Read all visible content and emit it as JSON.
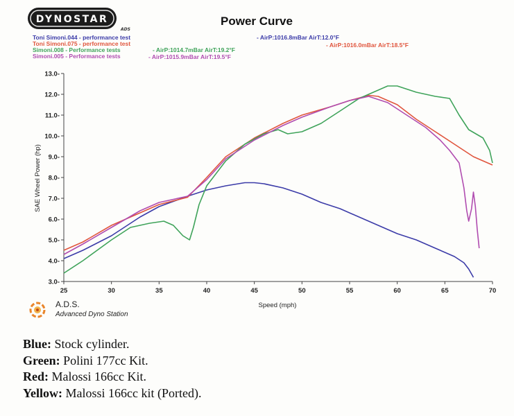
{
  "brand": {
    "logo_text": "DYNOSTAR",
    "sub_text": "ADS"
  },
  "ads": {
    "title": "A.D.S.",
    "subtitle": "Advanced Dyno Station"
  },
  "legend": [
    {
      "name": "Toni Simoni.044 - performance test",
      "air": "- AirP:1016.8mBar AirT:12.0°F",
      "color": "#3b3ba8"
    },
    {
      "name": "Toni Simoni.075 - performance test",
      "air": "- AirP:1016.0mBar AirT:18.5°F",
      "color": "#e0553d"
    },
    {
      "name": "Simoni.008 - Performance tests",
      "air": "- AirP:1014.7mBar AirT:19.2°F",
      "color": "#3fa35a"
    },
    {
      "name": "Simoni.005 - Performance tests",
      "air": "- AirP:1015.9mBar AirT:19.5°F",
      "color": "#b04cb0"
    }
  ],
  "captions": [
    {
      "label": "Blue:",
      "text": " Stock cylinder."
    },
    {
      "label": "Green:",
      "text": " Polini 177cc Kit."
    },
    {
      "label": "Red:",
      "text": " Malossi 166cc Kit."
    },
    {
      "label": "Yellow:",
      "text": " Malossi 166cc kit (Ported)."
    }
  ],
  "chart_data": {
    "type": "line",
    "title": "Power Curve",
    "xlabel": "Speed (mph)",
    "ylabel": "SAE Wheel Power (hp)",
    "xlim": [
      25,
      70
    ],
    "ylim": [
      3,
      13
    ],
    "xticks": [
      25,
      30,
      35,
      40,
      45,
      50,
      55,
      60,
      65,
      70
    ],
    "yticks": [
      3.0,
      4.0,
      5.0,
      6.0,
      7.0,
      8.0,
      9.0,
      10.0,
      11.0,
      12.0,
      13.0
    ],
    "grid": false,
    "series": [
      {
        "name": "Toni Simoni.044 - performance test",
        "color": "#3b3ba8",
        "points": [
          [
            25,
            4.1
          ],
          [
            27,
            4.5
          ],
          [
            30,
            5.2
          ],
          [
            33,
            6.1
          ],
          [
            35,
            6.6
          ],
          [
            38,
            7.1
          ],
          [
            40,
            7.4
          ],
          [
            42,
            7.6
          ],
          [
            44,
            7.75
          ],
          [
            45,
            7.75
          ],
          [
            46,
            7.7
          ],
          [
            48,
            7.5
          ],
          [
            50,
            7.2
          ],
          [
            52,
            6.8
          ],
          [
            54,
            6.5
          ],
          [
            56,
            6.1
          ],
          [
            58,
            5.7
          ],
          [
            60,
            5.3
          ],
          [
            62,
            5.0
          ],
          [
            64,
            4.6
          ],
          [
            66,
            4.2
          ],
          [
            67,
            3.9
          ],
          [
            67.5,
            3.6
          ],
          [
            68,
            3.2
          ]
        ]
      },
      {
        "name": "Toni Simoni.075 - performance test",
        "color": "#e0553d",
        "points": [
          [
            25,
            4.5
          ],
          [
            27,
            4.9
          ],
          [
            30,
            5.7
          ],
          [
            33,
            6.3
          ],
          [
            35,
            6.7
          ],
          [
            38,
            7.05
          ],
          [
            40,
            8.0
          ],
          [
            42,
            9.0
          ],
          [
            45,
            9.9
          ],
          [
            48,
            10.6
          ],
          [
            50,
            11.0
          ],
          [
            53,
            11.4
          ],
          [
            55,
            11.7
          ],
          [
            57,
            11.95
          ],
          [
            58,
            11.9
          ],
          [
            60,
            11.5
          ],
          [
            62,
            10.8
          ],
          [
            64,
            10.2
          ],
          [
            66,
            9.6
          ],
          [
            68,
            9.0
          ],
          [
            70,
            8.6
          ]
        ]
      },
      {
        "name": "Simoni.008 - Performance tests",
        "color": "#3fa35a",
        "points": [
          [
            25,
            3.4
          ],
          [
            27,
            4.0
          ],
          [
            30,
            5.0
          ],
          [
            32,
            5.6
          ],
          [
            34,
            5.8
          ],
          [
            35.5,
            5.9
          ],
          [
            36.5,
            5.7
          ],
          [
            37.5,
            5.2
          ],
          [
            38.2,
            5.0
          ],
          [
            38.6,
            5.6
          ],
          [
            39.2,
            6.7
          ],
          [
            40,
            7.6
          ],
          [
            42,
            8.8
          ],
          [
            44,
            9.6
          ],
          [
            46,
            10.1
          ],
          [
            47.5,
            10.3
          ],
          [
            48.5,
            10.1
          ],
          [
            50,
            10.2
          ],
          [
            52,
            10.6
          ],
          [
            54,
            11.2
          ],
          [
            56,
            11.8
          ],
          [
            58,
            12.2
          ],
          [
            59,
            12.4
          ],
          [
            60,
            12.4
          ],
          [
            62,
            12.1
          ],
          [
            64,
            11.9
          ],
          [
            65.5,
            11.8
          ],
          [
            66.5,
            11.0
          ],
          [
            67.5,
            10.3
          ],
          [
            69,
            9.9
          ],
          [
            69.7,
            9.3
          ],
          [
            70,
            8.7
          ]
        ]
      },
      {
        "name": "Simoni.005 - Performance tests",
        "color": "#b04cb0",
        "points": [
          [
            25,
            4.3
          ],
          [
            27,
            4.8
          ],
          [
            30,
            5.6
          ],
          [
            33,
            6.4
          ],
          [
            35,
            6.8
          ],
          [
            38,
            7.1
          ],
          [
            40,
            7.9
          ],
          [
            42,
            8.9
          ],
          [
            45,
            9.8
          ],
          [
            48,
            10.5
          ],
          [
            50,
            10.9
          ],
          [
            53,
            11.4
          ],
          [
            55,
            11.7
          ],
          [
            57,
            11.9
          ],
          [
            59,
            11.6
          ],
          [
            61,
            11.0
          ],
          [
            63,
            10.4
          ],
          [
            64.5,
            9.8
          ],
          [
            65.5,
            9.3
          ],
          [
            66.5,
            8.7
          ],
          [
            67,
            7.5
          ],
          [
            67.3,
            6.4
          ],
          [
            67.5,
            5.9
          ],
          [
            67.8,
            6.5
          ],
          [
            68,
            7.3
          ],
          [
            68.2,
            6.6
          ],
          [
            68.4,
            5.5
          ],
          [
            68.6,
            4.6
          ]
        ]
      }
    ]
  }
}
